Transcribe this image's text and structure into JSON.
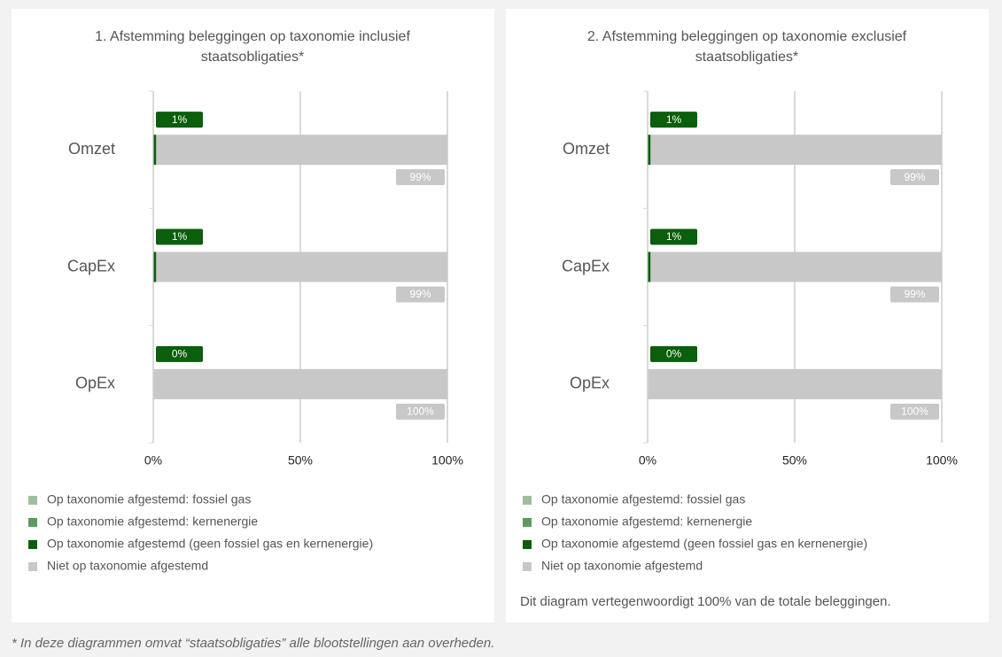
{
  "chart_data": [
    {
      "type": "stacked_barh",
      "title": "1. Afstemming beleggingen op taxonomie inclusief staatsobligaties*",
      "categories": [
        "Omzet",
        "CapEx",
        "OpEx"
      ],
      "series": [
        {
          "name": "Op taxonomie afgestemd: fossiel gas",
          "color": "#9dbf9d",
          "values": [
            0,
            0,
            0
          ]
        },
        {
          "name": "Op taxonomie afgestemd: kernenergie",
          "color": "#5e9a5e",
          "values": [
            0,
            0,
            0
          ]
        },
        {
          "name": "Op taxonomie afgestemd (geen fossiel gas en kernenergie)",
          "color": "#0b5e0b",
          "values": [
            1,
            1,
            0
          ],
          "value_labels": [
            "1%",
            "1%",
            "0%"
          ]
        },
        {
          "name": "Niet op taxonomie afgestemd",
          "color": "#c8c8c8",
          "values": [
            99,
            99,
            100
          ],
          "value_labels": [
            "99%",
            "99%",
            "100%"
          ]
        }
      ],
      "xlim": [
        0,
        100
      ],
      "xticks": [
        {
          "value": 0,
          "label": "0%"
        },
        {
          "value": 50,
          "label": "50%"
        },
        {
          "value": 100,
          "label": "100%"
        }
      ],
      "grid": true
    },
    {
      "type": "stacked_barh",
      "title": "2. Afstemming beleggingen op taxonomie exclusief staatsobligaties*",
      "categories": [
        "Omzet",
        "CapEx",
        "OpEx"
      ],
      "series": [
        {
          "name": "Op taxonomie afgestemd: fossiel gas",
          "color": "#9dbf9d",
          "values": [
            0,
            0,
            0
          ]
        },
        {
          "name": "Op taxonomie afgestemd: kernenergie",
          "color": "#5e9a5e",
          "values": [
            0,
            0,
            0
          ]
        },
        {
          "name": "Op taxonomie afgestemd (geen fossiel gas en kernenergie)",
          "color": "#0b5e0b",
          "values": [
            1,
            1,
            0
          ],
          "value_labels": [
            "1%",
            "1%",
            "0%"
          ]
        },
        {
          "name": "Niet op taxonomie afgestemd",
          "color": "#c8c8c8",
          "values": [
            99,
            99,
            100
          ],
          "value_labels": [
            "99%",
            "99%",
            "100%"
          ]
        }
      ],
      "xlim": [
        0,
        100
      ],
      "xticks": [
        {
          "value": 0,
          "label": "0%"
        },
        {
          "value": 50,
          "label": "50%"
        },
        {
          "value": 100,
          "label": "100%"
        }
      ],
      "grid": true,
      "note": "Dit diagram vertegenwoordigt 100% van de totale beleggingen."
    }
  ],
  "footnote": "* In deze diagrammen omvat “staatsobligaties” alle blootstellingen aan overheden."
}
